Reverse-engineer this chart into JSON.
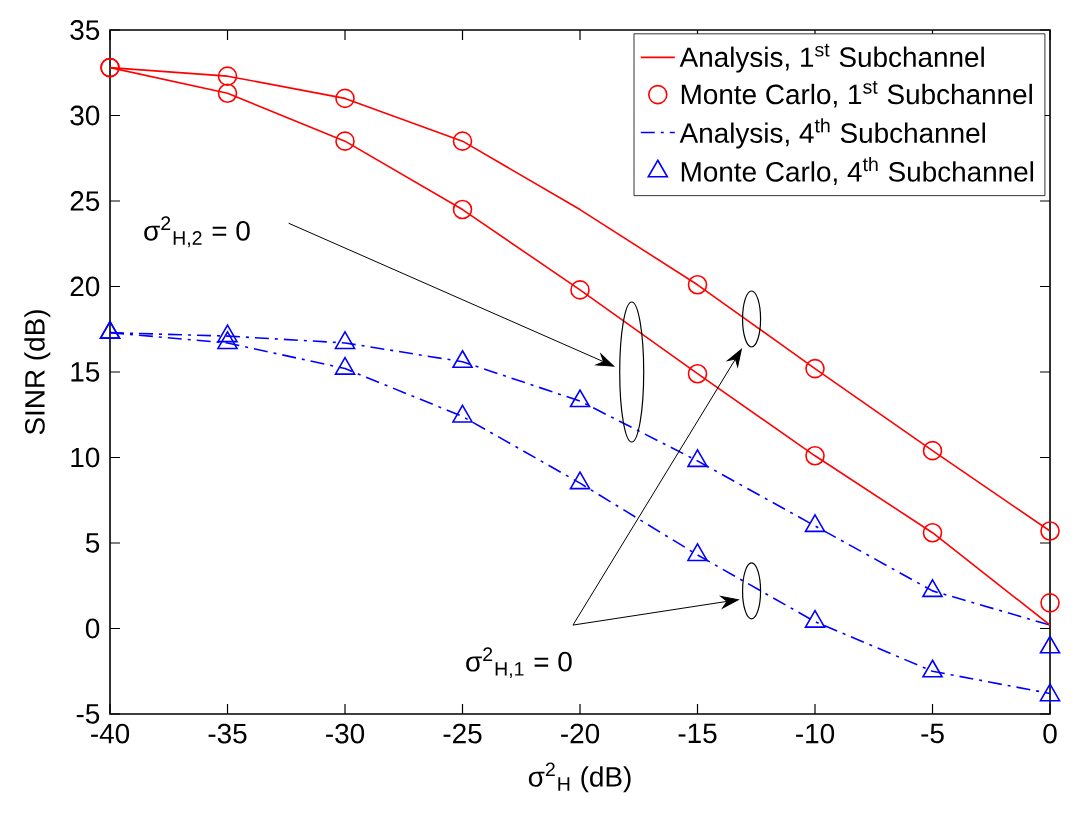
{
  "chart_data": {
    "type": "line",
    "xlabel": "σ$^{2}$$_{H}$ (dB)",
    "ylabel": "SINR (dB)",
    "x": [
      -40,
      -35,
      -30,
      -25,
      -20,
      -15,
      -10,
      -5,
      0
    ],
    "xlim": [
      -40,
      0
    ],
    "ylim": [
      -5,
      35
    ],
    "xticks": [
      -40,
      -35,
      -30,
      -25,
      -20,
      -15,
      -10,
      -5,
      0
    ],
    "yticks": [
      -5,
      0,
      5,
      10,
      15,
      20,
      25,
      30,
      35
    ],
    "grid": false,
    "legend": "top right",
    "series": [
      {
        "name": "Analysis, 1$^{st}$ Subchannel",
        "color": "#ff0000",
        "marker": "none",
        "line_style": "solid",
        "values": [
          32.8,
          32.3,
          31.0,
          28.5,
          24.5,
          20.1,
          15.2,
          10.4,
          5.7
        ]
      },
      {
        "name": "Monte Carlo, 1$^{st}$ Subchannel",
        "type": "scatter",
        "color": "#ff0000",
        "marker": "circle",
        "values": [
          32.8,
          32.3,
          31.0,
          28.5,
          null,
          20.1,
          15.2,
          10.4,
          5.7
        ]
      },
      {
        "name": "Analysis, 4$^{th}$ Subchannel",
        "color": "#0000ff",
        "marker": "none",
        "line_style": "dashdot",
        "values": [
          17.3,
          17.1,
          16.7,
          15.6,
          13.3,
          9.8,
          6.0,
          2.2,
          0.2
        ]
      },
      {
        "name": "Monte Carlo, 4$^{th}$ Subchannel",
        "type": "scatter",
        "color": "#0000ff",
        "marker": "triangle",
        "values": [
          17.3,
          17.1,
          16.7,
          15.6,
          13.3,
          9.8,
          6.0,
          2.2,
          -1.1
        ]
      },
      {
        "color": "#ff0000",
        "marker": "none",
        "line_style": "solid",
        "values": [
          32.8,
          31.3,
          28.5,
          24.5,
          19.8,
          14.9,
          10.1,
          5.6,
          0.2
        ]
      },
      {
        "type": "scatter",
        "color": "#ff0000",
        "marker": "circle",
        "values": [
          32.8,
          31.3,
          28.5,
          24.5,
          19.8,
          14.9,
          10.1,
          5.6,
          1.5
        ]
      },
      {
        "color": "#0000ff",
        "marker": "none",
        "line_style": "dashdot",
        "values": [
          17.3,
          16.7,
          15.2,
          12.4,
          8.5,
          4.3,
          0.4,
          -2.5,
          -3.8
        ]
      },
      {
        "type": "scatter",
        "color": "#0000ff",
        "marker": "triangle",
        "values": [
          17.3,
          16.7,
          15.2,
          12.4,
          8.5,
          4.3,
          0.4,
          -2.5,
          -3.9
        ]
      }
    ],
    "annotations": [
      "σ$^{2}$$_{H,2}$ = 0",
      "σ$^{2}$$_{H,1}$ = 0"
    ]
  }
}
